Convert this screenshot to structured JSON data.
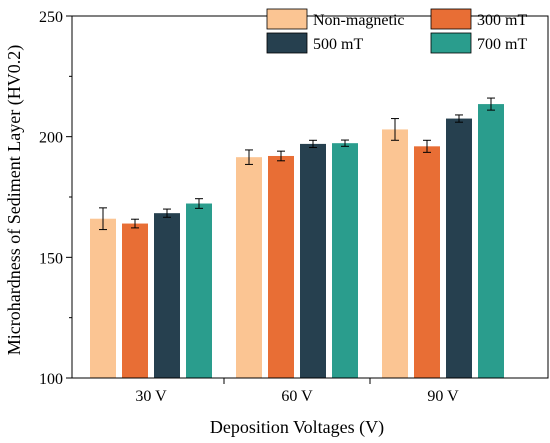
{
  "chart_data": {
    "type": "bar",
    "title": "",
    "xlabel": "Deposition Voltages (V)",
    "ylabel": "Microhardness of Sediment Layer  (HV0.2)",
    "ylim": [
      100,
      250
    ],
    "yticks": [
      100,
      150,
      200,
      250
    ],
    "categories": [
      "30 V",
      "60 V",
      "90 V"
    ],
    "grid": false,
    "legend_position": "top-right",
    "series": [
      {
        "name": "Non-magnetic",
        "color": "#FBC593",
        "values": [
          166.0,
          191.5,
          203.0
        ],
        "errors": [
          4.5,
          3.0,
          4.5
        ]
      },
      {
        "name": "300 mT",
        "color": "#E86E35",
        "values": [
          164.0,
          192.0,
          196.0
        ],
        "errors": [
          1.8,
          2.0,
          2.5
        ]
      },
      {
        "name": "500 mT",
        "color": "#26404F",
        "values": [
          168.3,
          197.0,
          207.5
        ],
        "errors": [
          1.7,
          1.5,
          1.5
        ]
      },
      {
        "name": "700 mT",
        "color": "#2A9D8D",
        "values": [
          172.3,
          197.3,
          213.5
        ],
        "errors": [
          2.0,
          1.3,
          2.5
        ]
      }
    ]
  }
}
